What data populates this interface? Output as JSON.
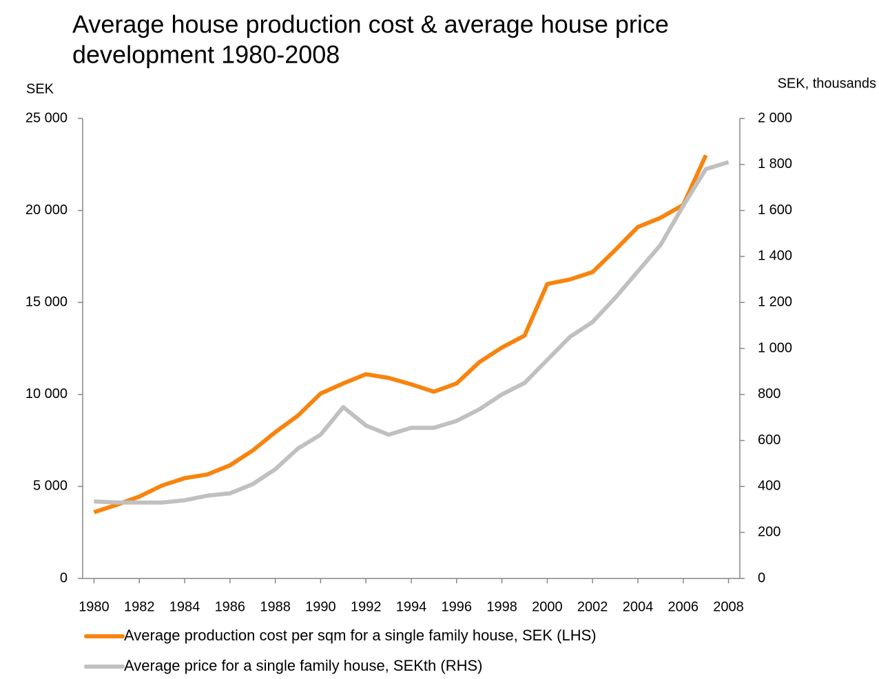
{
  "chart_data": {
    "type": "line",
    "title": [
      "Average house production cost & average house price",
      "development  1980-2008"
    ],
    "y_label": "SEK",
    "y2_label": "SEK, thousands",
    "x": [
      1980,
      1981,
      1982,
      1983,
      1984,
      1985,
      1986,
      1987,
      1988,
      1989,
      1990,
      1991,
      1992,
      1993,
      1994,
      1995,
      1996,
      1997,
      1998,
      1999,
      2000,
      2001,
      2002,
      2003,
      2004,
      2005,
      2006,
      2007,
      2008
    ],
    "xlim": [
      1979.5,
      2008.5
    ],
    "xticks": [
      1980,
      1982,
      1984,
      1986,
      1988,
      1990,
      1992,
      1994,
      1996,
      1998,
      2000,
      2002,
      2004,
      2006,
      2008
    ],
    "ylim": [
      0,
      25000
    ],
    "yticks": [
      0,
      {
        "value": 5000,
        "label": "5 000"
      },
      {
        "value": 10000,
        "label": "10 000"
      },
      {
        "value": 15000,
        "label": "15 000"
      },
      {
        "value": 20000,
        "label": "20 000"
      },
      {
        "value": 25000,
        "label": "25 000"
      }
    ],
    "y2lim": [
      0,
      2000
    ],
    "y2ticks": [
      0,
      200,
      400,
      600,
      800,
      {
        "value": 1000,
        "label": "1 000"
      },
      {
        "value": 1200,
        "label": "1 200"
      },
      {
        "value": 1400,
        "label": "1 400"
      },
      {
        "value": 1600,
        "label": "1 600"
      },
      {
        "value": 1800,
        "label": "1 800"
      },
      {
        "value": 2000,
        "label": "2 000"
      }
    ],
    "series": [
      {
        "name": "Average production cost per sqm for a single family house, SEK (LHS)",
        "color": "#f7840e",
        "values": [
          3600,
          4000,
          4450,
          5050,
          5450,
          5650,
          6150,
          6950,
          7950,
          8850,
          10050,
          10600,
          11100,
          10900,
          10550,
          10150,
          10600,
          11750,
          12550,
          13200,
          16000,
          16250,
          16650,
          17850,
          19100,
          19600,
          20300,
          23000,
          null
        ]
      },
      {
        "name": "Average price for a single family house, SEKth (RHS)",
        "color": "#c0c0c0",
        "axis": "y2",
        "values": [
          335,
          330,
          330,
          330,
          340,
          360,
          370,
          410,
          475,
          565,
          625,
          745,
          665,
          625,
          655,
          655,
          685,
          735,
          800,
          850,
          950,
          1050,
          1115,
          1220,
          1335,
          1450,
          1620,
          1780,
          1810
        ]
      }
    ]
  }
}
